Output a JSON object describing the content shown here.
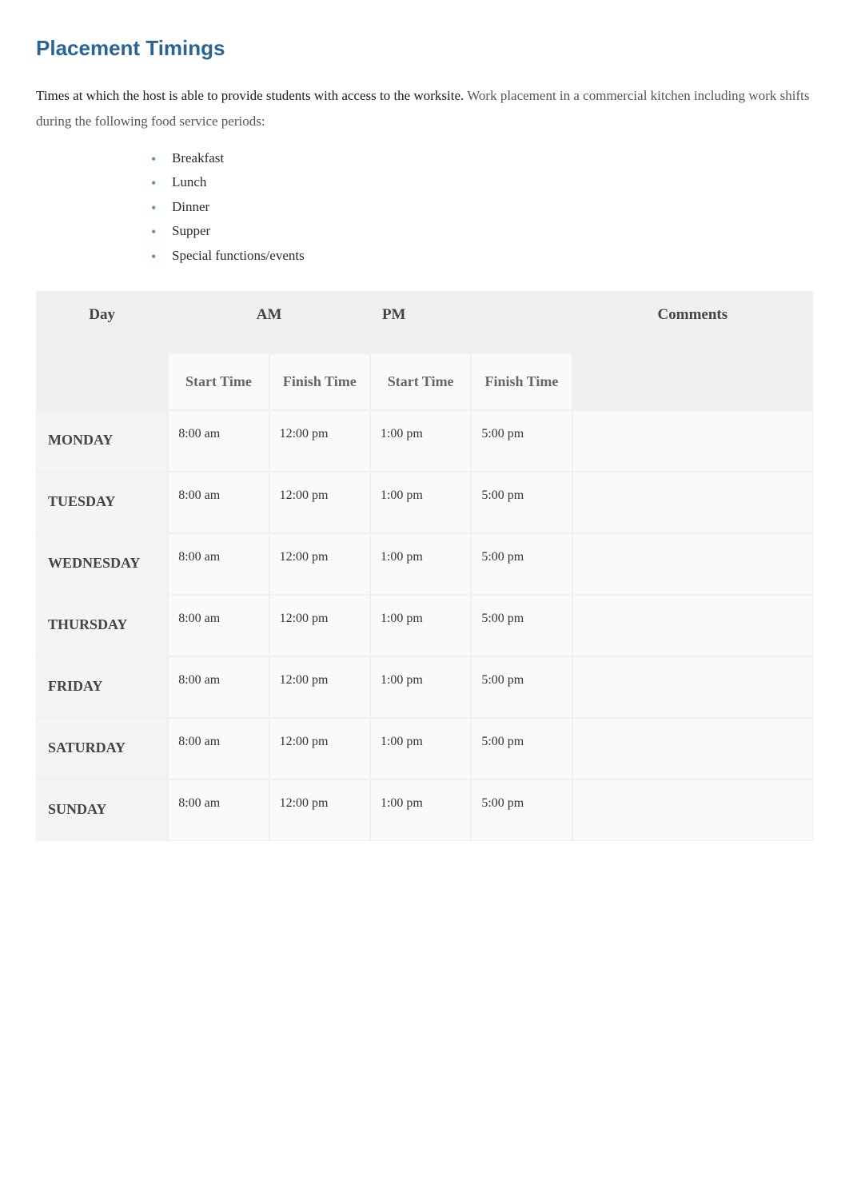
{
  "heading": "Placement Timings",
  "intro_lead": "Times at which the host is able to provide students with access to the worksite. ",
  "intro_sub": "Work placement in a commercial kitchen including work shifts during the following food service periods:",
  "periods": {
    "0": "Breakfast",
    "1": "Lunch",
    "2": "Dinner",
    "3": "Supper",
    "4": "Special functions/events"
  },
  "table": {
    "headers": {
      "day": "Day",
      "am": "AM",
      "pm": "PM",
      "comments": "Comments",
      "start": "Start Time",
      "finish": "Finish Time"
    },
    "rows": {
      "0": {
        "day": "MONDAY",
        "am_start": "8:00 am",
        "am_finish": "12:00 pm",
        "pm_start": "1:00 pm",
        "pm_finish": "5:00 pm",
        "comments": ""
      },
      "1": {
        "day": "TUESDAY",
        "am_start": "8:00 am",
        "am_finish": "12:00 pm",
        "pm_start": "1:00 pm",
        "pm_finish": "5:00 pm",
        "comments": ""
      },
      "2": {
        "day": "WEDNESDAY",
        "am_start": "8:00 am",
        "am_finish": "12:00 pm",
        "pm_start": "1:00 pm",
        "pm_finish": "5:00 pm",
        "comments": ""
      },
      "3": {
        "day": "THURSDAY",
        "am_start": "8:00 am",
        "am_finish": "12:00 pm",
        "pm_start": "1:00 pm",
        "pm_finish": "5:00 pm",
        "comments": ""
      },
      "4": {
        "day": "FRIDAY",
        "am_start": "8:00 am",
        "am_finish": "12:00 pm",
        "pm_start": "1:00 pm",
        "pm_finish": "5:00 pm",
        "comments": ""
      },
      "5": {
        "day": "SATURDAY",
        "am_start": "8:00 am",
        "am_finish": "12:00 pm",
        "pm_start": "1:00 pm",
        "pm_finish": "5:00 pm",
        "comments": ""
      },
      "6": {
        "day": "SUNDAY",
        "am_start": "8:00 am",
        "am_finish": "12:00 pm",
        "pm_start": "1:00 pm",
        "pm_finish": "5:00 pm",
        "comments": ""
      }
    }
  },
  "colors": {
    "heading": "#2a6496",
    "bullet": "#5a8fc7",
    "header_bg": "#f0f0f0",
    "cell_bg": "#fafafa",
    "day_bg": "#f4f4f4",
    "border": "#f0f0f0"
  }
}
